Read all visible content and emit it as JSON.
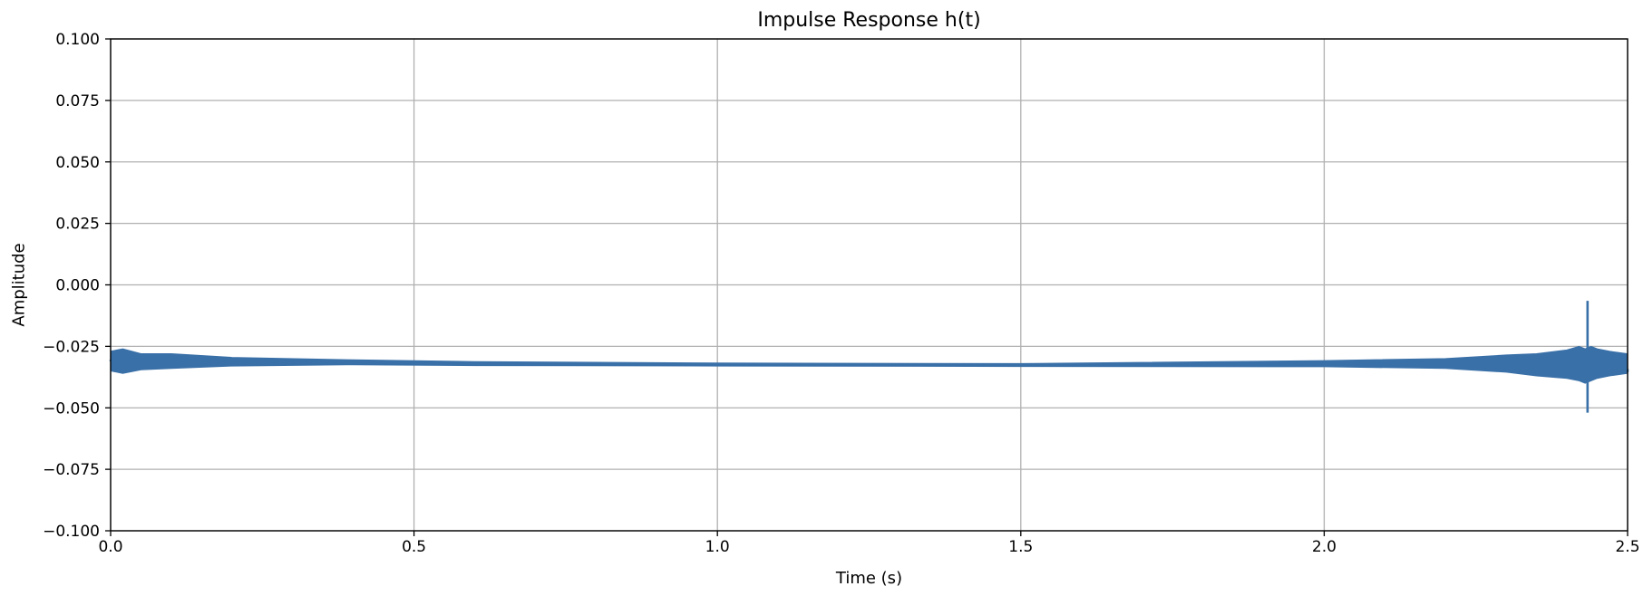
{
  "chart_data": {
    "type": "line",
    "title": "Impulse Response h(t)",
    "xlabel": "Time (s)",
    "ylabel": "Amplitude",
    "xlim": [
      0.0,
      2.5
    ],
    "ylim": [
      -0.1,
      0.1
    ],
    "grid": true,
    "legend": "none",
    "xticks": [
      0.0,
      0.5,
      1.0,
      1.5,
      2.0,
      2.5
    ],
    "xtick_labels": [
      "0.0",
      "0.5",
      "1.0",
      "1.5",
      "2.0",
      "2.5"
    ],
    "yticks": [
      0.1,
      0.075,
      0.05,
      0.025,
      0.0,
      -0.025,
      -0.05,
      -0.075,
      -0.1
    ],
    "ytick_labels": [
      "0.100",
      "0.075",
      "0.050",
      "0.025",
      "0.000",
      "−0.025",
      "−0.050",
      "−0.075",
      "−0.100"
    ],
    "series": [
      {
        "color": "#3a70a8",
        "envelope": {
          "time": [
            0.0,
            0.02,
            0.05,
            0.1,
            0.2,
            0.4,
            0.6,
            1.0,
            1.5,
            2.0,
            2.2,
            2.3,
            2.35,
            2.4,
            2.42,
            2.43,
            2.44,
            2.45,
            2.47,
            2.5
          ],
          "upper": [
            -0.027,
            -0.026,
            -0.028,
            -0.028,
            -0.0295,
            -0.0305,
            -0.0312,
            -0.0318,
            -0.032,
            -0.0308,
            -0.03,
            -0.0285,
            -0.028,
            -0.0265,
            -0.025,
            -0.026,
            -0.025,
            -0.026,
            -0.027,
            -0.028
          ],
          "lower": [
            -0.035,
            -0.036,
            -0.0345,
            -0.034,
            -0.033,
            -0.0325,
            -0.0328,
            -0.033,
            -0.0332,
            -0.0333,
            -0.034,
            -0.0355,
            -0.037,
            -0.038,
            -0.039,
            -0.04,
            -0.039,
            -0.038,
            -0.037,
            -0.036
          ]
        },
        "spike": {
          "time": 2.434,
          "max": -0.0065,
          "min": -0.052
        }
      }
    ]
  }
}
